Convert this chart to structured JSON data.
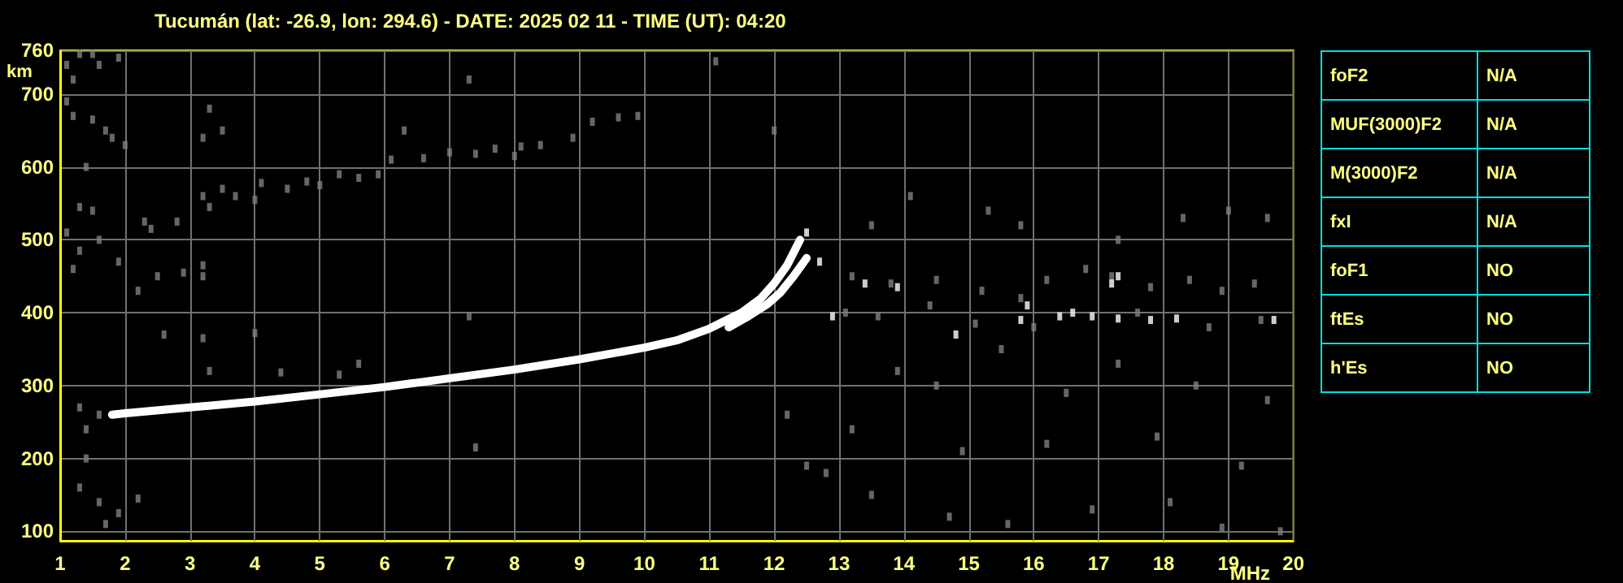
{
  "chart_data": [
    {
      "type": "scatter",
      "title": "Tucumán (lat: -26.9, lon: 294.6) - DATE: 2025 02 11 - TIME (UT): 04:20",
      "xlabel": "MHz",
      "ylabel": "km",
      "xlim": [
        1,
        20
      ],
      "ylim": [
        87,
        760
      ],
      "xticks": [
        1,
        2,
        3,
        4,
        5,
        6,
        7,
        8,
        9,
        10,
        11,
        12,
        13,
        14,
        15,
        16,
        17,
        18,
        19,
        20
      ],
      "yticks": [
        100,
        200,
        300,
        400,
        500,
        600,
        700,
        760
      ],
      "grid": true,
      "marker": "square",
      "series": [
        {
          "type": "line",
          "color": "#ffffff",
          "marker": "none",
          "line_style": "solid",
          "x": [
            1.8,
            2,
            3,
            4,
            5,
            6,
            7,
            8,
            9,
            10,
            10.5,
            11,
            11.5,
            11.8,
            12,
            12.2,
            12.4
          ],
          "values": [
            260,
            262,
            270,
            278,
            288,
            298,
            310,
            322,
            336,
            352,
            362,
            378,
            400,
            420,
            440,
            465,
            500
          ]
        },
        {
          "type": "line",
          "color": "#ffffff",
          "marker": "none",
          "line_style": "solid",
          "x": [
            11.3,
            11.6,
            11.9,
            12.1,
            12.3,
            12.5
          ],
          "values": [
            380,
            395,
            412,
            428,
            450,
            475
          ]
        },
        {
          "color": "#808080",
          "x": [
            3.2,
            3.3,
            3.5,
            3.7,
            4.0,
            4.1,
            4.5,
            4.8,
            5.0,
            5.3,
            5.6,
            5.9,
            6.1,
            6.6,
            7.0,
            7.4,
            7.7,
            8.0,
            8.4,
            8.9,
            9.2,
            9.6,
            9.9
          ],
          "values": [
            560,
            545,
            570,
            560,
            555,
            578,
            570,
            580,
            575,
            590,
            585,
            590,
            610,
            612,
            620,
            618,
            625,
            615,
            630,
            640,
            662,
            668,
            670
          ]
        },
        {
          "color": "#808080",
          "x": [
            1.1,
            1.2,
            1.3,
            1.5,
            1.6,
            1.9,
            1.1,
            1.2,
            1.5,
            1.7,
            1.8,
            1.4,
            2.0,
            1.3,
            1.5,
            1.1,
            1.3,
            1.2,
            1.6,
            1.9,
            2.3,
            2.4,
            2.8,
            2.5,
            2.9,
            3.2,
            3.2,
            2.2,
            3.3,
            3.5,
            3.2,
            1.3,
            1.4,
            1.6,
            1.4,
            1.3,
            1.6,
            1.7,
            2.2,
            1.9,
            2.6,
            3.2,
            3.3,
            4.4,
            5.3,
            5.6,
            4.0,
            7.3,
            7.4,
            7.3,
            8.1,
            6.3,
            11.1,
            12.0,
            13.5,
            14.1,
            15.3,
            15.8,
            17.3,
            18.3,
            19.0,
            19.6,
            13.2,
            13.8,
            14.5,
            15.2,
            15.8,
            16.2,
            16.8,
            17.2,
            17.8,
            18.4,
            18.9,
            19.4,
            13.1,
            13.6,
            14.4,
            15.1,
            16.0,
            17.6,
            18.7,
            19.5,
            13.9,
            14.5,
            15.5,
            16.5,
            17.3,
            18.5,
            19.6,
            13.2,
            14.9,
            16.2,
            17.9,
            19.2,
            13.5,
            14.7,
            15.6,
            16.9,
            18.1,
            18.9,
            19.8,
            12.5,
            12.8,
            12.2
          ],
          "values": [
            740,
            720,
            755,
            755,
            740,
            750,
            690,
            670,
            665,
            650,
            640,
            600,
            630,
            545,
            540,
            510,
            485,
            460,
            500,
            470,
            525,
            515,
            525,
            450,
            455,
            465,
            450,
            430,
            680,
            650,
            640,
            270,
            240,
            260,
            200,
            160,
            140,
            110,
            145,
            125,
            370,
            365,
            320,
            318,
            315,
            330,
            372,
            395,
            215,
            720,
            628,
            650,
            745,
            650,
            520,
            560,
            540,
            520,
            500,
            530,
            540,
            530,
            450,
            440,
            445,
            430,
            420,
            445,
            460,
            450,
            435,
            445,
            430,
            440,
            400,
            395,
            410,
            385,
            380,
            400,
            380,
            390,
            320,
            300,
            350,
            290,
            330,
            300,
            280,
            240,
            210,
            220,
            230,
            190,
            150,
            120,
            110,
            130,
            140,
            105,
            100,
            190,
            180,
            260
          ]
        },
        {
          "color": "#ffffff",
          "x": [
            16.4,
            16.6,
            16.9,
            17.3,
            17.8,
            18.2,
            19.7,
            17.2,
            17.3,
            15.9,
            15.8,
            14.8,
            13.4,
            13.9,
            12.7,
            12.5,
            12.9
          ],
          "values": [
            395,
            400,
            395,
            392,
            390,
            392,
            390,
            440,
            450,
            410,
            390,
            370,
            440,
            435,
            470,
            510,
            395
          ]
        }
      ]
    },
    {
      "type": "other",
      "annotations": [
        "foF2",
        "N/A",
        "MUF(3000)F2",
        "N/A",
        "M(3000)F2",
        "N/A",
        "fxI",
        "N/A",
        "foF1",
        "NO",
        "ftEs",
        "NO",
        "h'Es",
        "NO"
      ]
    }
  ]
}
